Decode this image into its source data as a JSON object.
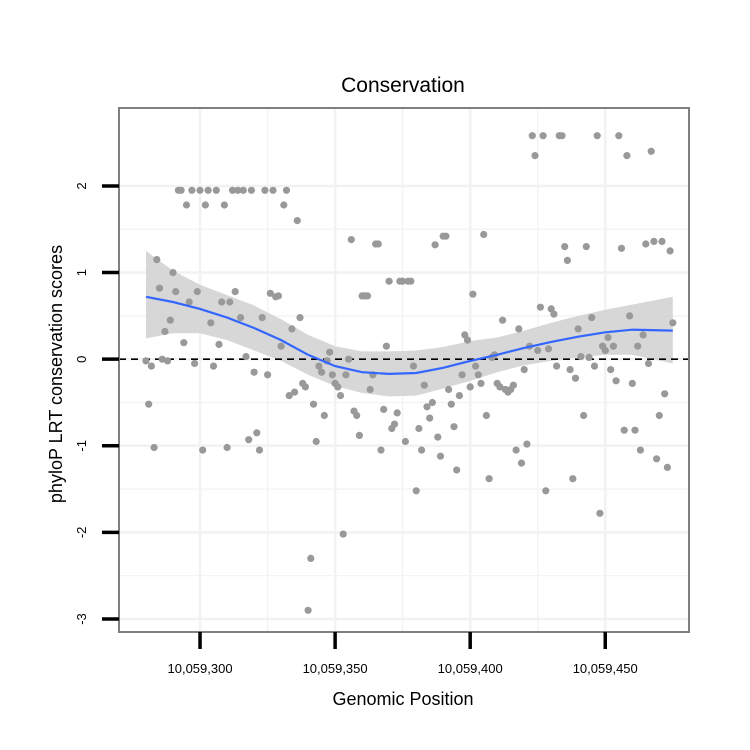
{
  "chart_data": {
    "type": "scatter",
    "title": "Conservation",
    "xlabel": "Genomic Position",
    "ylabel": "phyloP LRT conservation scores",
    "xlim": [
      10059270,
      10059481
    ],
    "ylim": [
      -3.15,
      2.9
    ],
    "x_ticks": [
      10059300,
      10059350,
      10059400,
      10059450
    ],
    "x_tick_labels": [
      "10,059,300",
      "10,059,350",
      "10,059,400",
      "10,059,450"
    ],
    "y_ticks": [
      -3,
      -2,
      -1,
      0,
      1,
      2
    ],
    "y_tick_labels": [
      "-3",
      "-2",
      "-1",
      "0",
      "1",
      "2"
    ],
    "grid": true,
    "reference_line": {
      "y": 0,
      "style": "dashed",
      "color": "#000000"
    },
    "colors": {
      "points": "#999999",
      "smooth_line": "#3366ff",
      "confidence_band": "#d3d3d3",
      "panel_border": "#7f7f7f",
      "grid": "#f2f2f2"
    },
    "points": [
      [
        10059280,
        -0.02
      ],
      [
        10059281,
        -0.52
      ],
      [
        10059282,
        -0.08
      ],
      [
        10059283,
        -1.02
      ],
      [
        10059284,
        1.15
      ],
      [
        10059285,
        0.82
      ],
      [
        10059286,
        0.0
      ],
      [
        10059287,
        0.32
      ],
      [
        10059288,
        -0.02
      ],
      [
        10059289,
        0.45
      ],
      [
        10059290,
        1.0
      ],
      [
        10059291,
        0.78
      ],
      [
        10059292,
        1.95
      ],
      [
        10059293,
        1.95
      ],
      [
        10059294,
        0.19
      ],
      [
        10059295,
        1.78
      ],
      [
        10059296,
        0.66
      ],
      [
        10059297,
        1.95
      ],
      [
        10059298,
        -0.05
      ],
      [
        10059299,
        0.78
      ],
      [
        10059300,
        1.95
      ],
      [
        10059301,
        -1.05
      ],
      [
        10059302,
        1.78
      ],
      [
        10059303,
        1.95
      ],
      [
        10059304,
        0.42
      ],
      [
        10059305,
        -0.08
      ],
      [
        10059306,
        1.95
      ],
      [
        10059307,
        0.17
      ],
      [
        10059308,
        0.66
      ],
      [
        10059309,
        1.78
      ],
      [
        10059310,
        -1.02
      ],
      [
        10059311,
        0.66
      ],
      [
        10059312,
        1.95
      ],
      [
        10059313,
        0.78
      ],
      [
        10059314,
        1.95
      ],
      [
        10059315,
        0.48
      ],
      [
        10059316,
        1.95
      ],
      [
        10059317,
        0.03
      ],
      [
        10059318,
        -0.93
      ],
      [
        10059319,
        1.95
      ],
      [
        10059320,
        -0.15
      ],
      [
        10059321,
        -0.85
      ],
      [
        10059322,
        -1.05
      ],
      [
        10059323,
        0.48
      ],
      [
        10059324,
        1.95
      ],
      [
        10059325,
        -0.18
      ],
      [
        10059326,
        0.76
      ],
      [
        10059327,
        1.95
      ],
      [
        10059328,
        0.72
      ],
      [
        10059329,
        0.73
      ],
      [
        10059330,
        0.15
      ],
      [
        10059331,
        1.78
      ],
      [
        10059332,
        1.95
      ],
      [
        10059333,
        -0.42
      ],
      [
        10059334,
        0.35
      ],
      [
        10059335,
        -0.38
      ],
      [
        10059336,
        1.6
      ],
      [
        10059337,
        0.48
      ],
      [
        10059338,
        -0.28
      ],
      [
        10059339,
        -0.32
      ],
      [
        10059340,
        -2.9
      ],
      [
        10059341,
        -2.3
      ],
      [
        10059342,
        -0.52
      ],
      [
        10059343,
        -0.95
      ],
      [
        10059344,
        -0.08
      ],
      [
        10059345,
        -0.15
      ],
      [
        10059346,
        -0.65
      ],
      [
        10059347,
        -0.02
      ],
      [
        10059348,
        0.08
      ],
      [
        10059349,
        -0.18
      ],
      [
        10059350,
        -0.28
      ],
      [
        10059351,
        -0.32
      ],
      [
        10059352,
        -0.42
      ],
      [
        10059353,
        -2.02
      ],
      [
        10059354,
        -0.18
      ],
      [
        10059355,
        0.0
      ],
      [
        10059356,
        1.38
      ],
      [
        10059357,
        -0.6
      ],
      [
        10059358,
        -0.65
      ],
      [
        10059359,
        -0.88
      ],
      [
        10059360,
        0.73
      ],
      [
        10059361,
        0.73
      ],
      [
        10059362,
        0.73
      ],
      [
        10059363,
        -0.35
      ],
      [
        10059364,
        -0.18
      ],
      [
        10059365,
        1.33
      ],
      [
        10059366,
        1.33
      ],
      [
        10059367,
        -1.05
      ],
      [
        10059368,
        -0.58
      ],
      [
        10059369,
        0.15
      ],
      [
        10059370,
        0.9
      ],
      [
        10059371,
        -0.8
      ],
      [
        10059372,
        -0.75
      ],
      [
        10059373,
        -0.62
      ],
      [
        10059374,
        0.9
      ],
      [
        10059375,
        0.9
      ],
      [
        10059376,
        -0.95
      ],
      [
        10059377,
        0.9
      ],
      [
        10059378,
        0.9
      ],
      [
        10059379,
        -0.08
      ],
      [
        10059380,
        -1.52
      ],
      [
        10059381,
        -0.8
      ],
      [
        10059382,
        -1.05
      ],
      [
        10059383,
        -0.3
      ],
      [
        10059384,
        -0.55
      ],
      [
        10059385,
        -0.68
      ],
      [
        10059386,
        -0.5
      ],
      [
        10059387,
        1.32
      ],
      [
        10059388,
        -0.9
      ],
      [
        10059389,
        -1.12
      ],
      [
        10059390,
        1.42
      ],
      [
        10059391,
        1.42
      ],
      [
        10059392,
        -0.35
      ],
      [
        10059393,
        -0.52
      ],
      [
        10059394,
        -0.78
      ],
      [
        10059395,
        -1.28
      ],
      [
        10059396,
        -0.42
      ],
      [
        10059397,
        -0.18
      ],
      [
        10059398,
        0.28
      ],
      [
        10059399,
        0.22
      ],
      [
        10059400,
        -0.32
      ],
      [
        10059401,
        0.75
      ],
      [
        10059402,
        -0.08
      ],
      [
        10059403,
        -0.18
      ],
      [
        10059404,
        -0.28
      ],
      [
        10059405,
        1.44
      ],
      [
        10059406,
        -0.65
      ],
      [
        10059407,
        -1.38
      ],
      [
        10059408,
        0.02
      ],
      [
        10059409,
        0.05
      ],
      [
        10059410,
        -0.28
      ],
      [
        10059411,
        -0.32
      ],
      [
        10059412,
        0.45
      ],
      [
        10059413,
        -0.35
      ],
      [
        10059414,
        -0.38
      ],
      [
        10059415,
        -0.35
      ],
      [
        10059416,
        -0.3
      ],
      [
        10059417,
        -1.05
      ],
      [
        10059418,
        0.35
      ],
      [
        10059419,
        -1.2
      ],
      [
        10059420,
        -0.12
      ],
      [
        10059421,
        -0.98
      ],
      [
        10059422,
        0.15
      ],
      [
        10059423,
        2.58
      ],
      [
        10059424,
        2.35
      ],
      [
        10059425,
        0.1
      ],
      [
        10059426,
        0.6
      ],
      [
        10059427,
        2.58
      ],
      [
        10059428,
        -1.52
      ],
      [
        10059429,
        0.12
      ],
      [
        10059430,
        0.58
      ],
      [
        10059431,
        0.52
      ],
      [
        10059432,
        -0.08
      ],
      [
        10059433,
        2.58
      ],
      [
        10059434,
        2.58
      ],
      [
        10059435,
        1.3
      ],
      [
        10059436,
        1.14
      ],
      [
        10059437,
        -0.12
      ],
      [
        10059438,
        -1.38
      ],
      [
        10059439,
        -0.22
      ],
      [
        10059440,
        0.35
      ],
      [
        10059441,
        0.03
      ],
      [
        10059442,
        -0.65
      ],
      [
        10059443,
        1.3
      ],
      [
        10059444,
        0.02
      ],
      [
        10059445,
        0.48
      ],
      [
        10059446,
        -0.08
      ],
      [
        10059447,
        2.58
      ],
      [
        10059448,
        -1.78
      ],
      [
        10059449,
        0.15
      ],
      [
        10059450,
        0.1
      ],
      [
        10059451,
        0.25
      ],
      [
        10059452,
        -0.12
      ],
      [
        10059453,
        0.15
      ],
      [
        10059454,
        -0.25
      ],
      [
        10059455,
        2.58
      ],
      [
        10059456,
        1.28
      ],
      [
        10059457,
        -0.82
      ],
      [
        10059458,
        2.35
      ],
      [
        10059459,
        0.5
      ],
      [
        10059460,
        -0.28
      ],
      [
        10059461,
        -0.82
      ],
      [
        10059462,
        0.15
      ],
      [
        10059463,
        -1.05
      ],
      [
        10059464,
        0.28
      ],
      [
        10059465,
        1.33
      ],
      [
        10059466,
        -0.05
      ],
      [
        10059467,
        2.4
      ],
      [
        10059468,
        1.36
      ],
      [
        10059469,
        -1.15
      ],
      [
        10059470,
        -0.65
      ],
      [
        10059471,
        1.36
      ],
      [
        10059472,
        -0.4
      ],
      [
        10059473,
        -1.25
      ],
      [
        10059474,
        1.25
      ],
      [
        10059475,
        0.42
      ]
    ],
    "smooth_line": {
      "x": [
        10059280,
        10059290,
        10059300,
        10059310,
        10059320,
        10059330,
        10059340,
        10059350,
        10059360,
        10059370,
        10059380,
        10059390,
        10059400,
        10059410,
        10059420,
        10059430,
        10059440,
        10059450,
        10059460,
        10059475
      ],
      "y": [
        0.72,
        0.66,
        0.58,
        0.48,
        0.36,
        0.22,
        0.05,
        -0.08,
        -0.15,
        -0.17,
        -0.16,
        -0.1,
        -0.02,
        0.05,
        0.13,
        0.2,
        0.26,
        0.31,
        0.34,
        0.33
      ],
      "lower": [
        0.24,
        0.3,
        0.3,
        0.22,
        0.1,
        -0.02,
        -0.18,
        -0.31,
        -0.39,
        -0.43,
        -0.42,
        -0.34,
        -0.25,
        -0.15,
        -0.07,
        -0.02,
        0.02,
        0.05,
        0.05,
        -0.05
      ],
      "upper": [
        1.25,
        1.02,
        0.86,
        0.74,
        0.62,
        0.46,
        0.28,
        0.15,
        0.09,
        0.09,
        0.1,
        0.14,
        0.21,
        0.25,
        0.33,
        0.42,
        0.5,
        0.57,
        0.63,
        0.72
      ]
    }
  }
}
